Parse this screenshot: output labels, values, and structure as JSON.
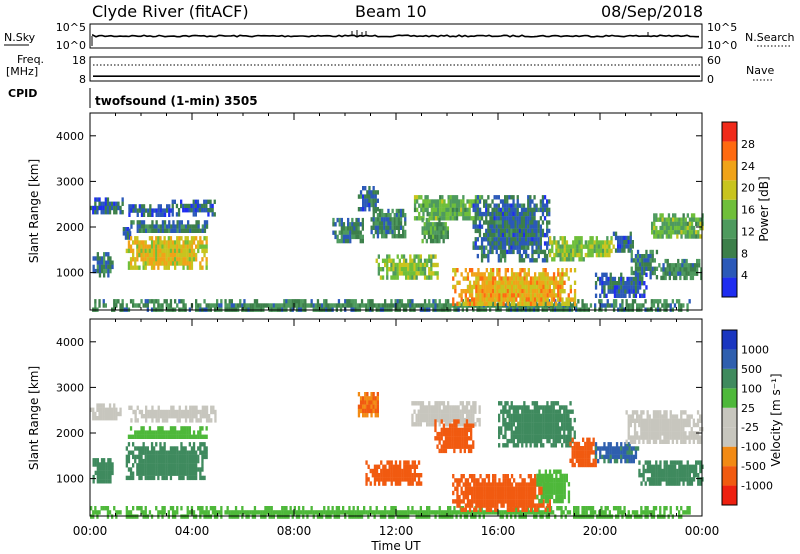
{
  "header": {
    "station": "Clyde River (fitACF)",
    "beam": "Beam 10",
    "date": "08/Sep/2018"
  },
  "left_labels": {
    "nsky": "N.Sky",
    "freq_line1": "Freq.",
    "freq_line2": "[MHz]",
    "cpid": "CPID"
  },
  "right_labels": {
    "nsearch": "N.Search",
    "nave": "Nave"
  },
  "cpid_text": "twofsound (1-min) 3505",
  "colors": {
    "power": [
      "#1f2df0",
      "#2b59b8",
      "#3c7f4a",
      "#4e9a5e",
      "#6fbf3a",
      "#c8c41e",
      "#f0a318",
      "#ff6a10",
      "#f02a1a"
    ],
    "velocity": [
      "#ee2010",
      "#f15a10",
      "#f28a14",
      "#c7c6be",
      "#c7c6be",
      "#4eb83a",
      "#3f8a5e",
      "#2f5fae",
      "#1a36c0"
    ]
  },
  "chart_data": [
    {
      "type": "line",
      "name": "noise-panel",
      "left_axis": {
        "label": "N.Sky",
        "ticks": [
          "10^5",
          "10^0"
        ]
      },
      "right_axis": {
        "label": "N.Search",
        "ticks": [
          "10^5",
          "10^0"
        ]
      }
    },
    {
      "type": "line",
      "name": "frequency-panel",
      "left_axis": {
        "label": "Freq. [MHz]",
        "ticks": [
          "18",
          "8"
        ],
        "ylim": [
          8,
          18
        ]
      },
      "right_axis": {
        "label": "Nave",
        "ticks": [
          "60",
          "0"
        ],
        "ylim": [
          0,
          60
        ]
      },
      "frequency_mhz": 10,
      "nave": 40
    },
    {
      "type": "heatmap",
      "name": "power",
      "ylabel": "Slant Range [km]",
      "yticks": [
        1000,
        2000,
        3000,
        4000
      ],
      "ylim": [
        180,
        4500
      ],
      "xlim_hours": [
        0,
        24
      ],
      "colorbar": {
        "label": "Power [dB]",
        "ticks": [
          "28",
          "24",
          "20",
          "16",
          "12",
          "8",
          "4"
        ]
      },
      "regions": [
        {
          "t": [
            0.0,
            1.3
          ],
          "r": [
            2300,
            2650
          ],
          "v": 6
        },
        {
          "t": [
            0.1,
            0.9
          ],
          "r": [
            950,
            1450
          ],
          "v": 8
        },
        {
          "t": [
            1.5,
            3.2
          ],
          "r": [
            2300,
            2500
          ],
          "v": 5
        },
        {
          "t": [
            3.2,
            4.9
          ],
          "r": [
            2300,
            2600
          ],
          "v": 6
        },
        {
          "t": [
            1.2,
            1.6
          ],
          "r": [
            1800,
            2000
          ],
          "v": 5
        },
        {
          "t": [
            1.5,
            4.7
          ],
          "r": [
            1900,
            2150
          ],
          "v": 8
        },
        {
          "t": [
            1.4,
            4.6
          ],
          "r": [
            1100,
            1800
          ],
          "v": 20
        },
        {
          "t": [
            0.0,
            23.5
          ],
          "r": [
            200,
            420
          ],
          "v": 10
        },
        {
          "t": [
            9.5,
            10.7
          ],
          "r": [
            1700,
            2200
          ],
          "v": 9
        },
        {
          "t": [
            10.5,
            11.3
          ],
          "r": [
            2400,
            2900
          ],
          "v": 7
        },
        {
          "t": [
            11.0,
            12.4
          ],
          "r": [
            1800,
            2400
          ],
          "v": 9
        },
        {
          "t": [
            11.2,
            13.6
          ],
          "r": [
            900,
            1400
          ],
          "v": 16
        },
        {
          "t": [
            12.7,
            15.3
          ],
          "r": [
            2200,
            2700
          ],
          "v": 14
        },
        {
          "t": [
            13.0,
            14.0
          ],
          "r": [
            1700,
            2200
          ],
          "v": 12
        },
        {
          "t": [
            14.2,
            19.0
          ],
          "r": [
            300,
            1100
          ],
          "v": 22
        },
        {
          "t": [
            15.0,
            18.0
          ],
          "r": [
            1300,
            2700
          ],
          "v": 7
        },
        {
          "t": [
            18.0,
            19.5
          ],
          "r": [
            1300,
            1800
          ],
          "v": 16
        },
        {
          "t": [
            19.5,
            20.5
          ],
          "r": [
            1400,
            1800
          ],
          "v": 17
        },
        {
          "t": [
            20.5,
            21.3
          ],
          "r": [
            1500,
            1900
          ],
          "v": 6
        },
        {
          "t": [
            21.2,
            22.2
          ],
          "r": [
            900,
            1500
          ],
          "v": 9
        },
        {
          "t": [
            22.0,
            24.0
          ],
          "r": [
            1800,
            2300
          ],
          "v": 14
        },
        {
          "t": [
            22.2,
            24.0
          ],
          "r": [
            900,
            1300
          ],
          "v": 10
        },
        {
          "t": [
            19.8,
            21.8
          ],
          "r": [
            500,
            1000
          ],
          "v": 6
        }
      ]
    },
    {
      "type": "heatmap",
      "name": "velocity",
      "ylabel": "Slant Range [km]",
      "xlabel": "Time UT",
      "yticks": [
        1000,
        2000,
        3000,
        4000
      ],
      "ylim": [
        180,
        4500
      ],
      "xlim_hours": [
        0,
        24
      ],
      "xticks": [
        "00:00",
        "04:00",
        "08:00",
        "12:00",
        "16:00",
        "20:00",
        "00:00"
      ],
      "colorbar": {
        "label": "Velocity [m s⁻¹]",
        "ticks": [
          "1000",
          "500",
          "100",
          "25",
          "-25",
          "-100",
          "-500",
          "-1000"
        ]
      },
      "regions": [
        {
          "t": [
            0.0,
            1.3
          ],
          "r": [
            2300,
            2650
          ],
          "v": 0
        },
        {
          "t": [
            1.5,
            4.9
          ],
          "r": [
            2300,
            2600
          ],
          "v": 0
        },
        {
          "t": [
            1.4,
            4.6
          ],
          "r": [
            1900,
            2150
          ],
          "v": 50
        },
        {
          "t": [
            0.1,
            0.9
          ],
          "r": [
            950,
            1450
          ],
          "v": 300
        },
        {
          "t": [
            1.4,
            4.6
          ],
          "r": [
            1000,
            1800
          ],
          "v": 300
        },
        {
          "t": [
            0.0,
            23.5
          ],
          "r": [
            200,
            400
          ],
          "v": 50
        },
        {
          "t": [
            10.5,
            11.3
          ],
          "r": [
            2400,
            2900
          ],
          "v": -100
        },
        {
          "t": [
            10.8,
            13.0
          ],
          "r": [
            900,
            1400
          ],
          "v": -200
        },
        {
          "t": [
            12.6,
            15.3
          ],
          "r": [
            2200,
            2700
          ],
          "v": 0
        },
        {
          "t": [
            13.5,
            15.0
          ],
          "r": [
            1600,
            2300
          ],
          "v": -200
        },
        {
          "t": [
            14.2,
            18.0
          ],
          "r": [
            300,
            1100
          ],
          "v": -300
        },
        {
          "t": [
            16.0,
            19.0
          ],
          "r": [
            1700,
            2700
          ],
          "v": 200
        },
        {
          "t": [
            17.5,
            18.8
          ],
          "r": [
            500,
            1200
          ],
          "v": 60
        },
        {
          "t": [
            18.8,
            19.8
          ],
          "r": [
            1300,
            1900
          ],
          "v": -200
        },
        {
          "t": [
            19.8,
            21.5
          ],
          "r": [
            1400,
            1800
          ],
          "v": 600
        },
        {
          "t": [
            21.0,
            24.0
          ],
          "r": [
            1800,
            2500
          ],
          "v": 0
        },
        {
          "t": [
            21.5,
            24.0
          ],
          "r": [
            900,
            1400
          ],
          "v": 300
        }
      ]
    }
  ]
}
